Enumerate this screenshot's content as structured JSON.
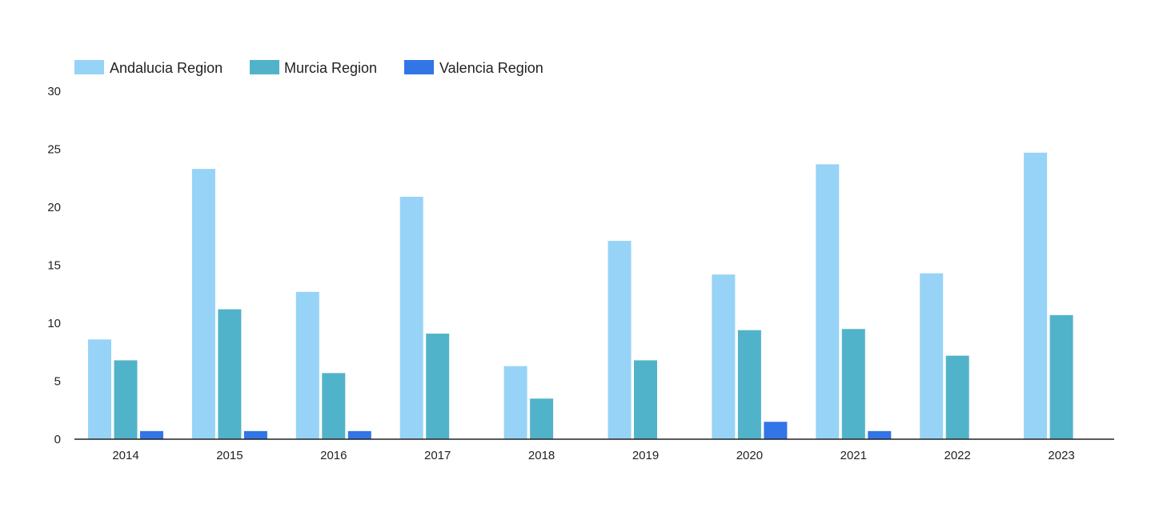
{
  "chart_data": {
    "type": "bar",
    "categories": [
      "2014",
      "2015",
      "2016",
      "2017",
      "2018",
      "2019",
      "2020",
      "2021",
      "2022",
      "2023"
    ],
    "series": [
      {
        "name": "Andalucia Region",
        "color": "#97d3f6",
        "values": [
          8.6,
          23.3,
          12.7,
          20.9,
          6.3,
          17.1,
          14.2,
          23.7,
          14.3,
          24.7
        ]
      },
      {
        "name": "Murcia Region",
        "color": "#51b3c9",
        "values": [
          6.8,
          11.2,
          5.7,
          9.1,
          3.5,
          6.8,
          9.4,
          9.5,
          7.2,
          10.7
        ]
      },
      {
        "name": "Valencia Region",
        "color": "#3275e6",
        "values": [
          0.7,
          0.7,
          0.7,
          0,
          0,
          0,
          1.5,
          0.7,
          0,
          0
        ]
      }
    ],
    "y_ticks": [
      "0",
      "5",
      "10",
      "15",
      "20",
      "25",
      "30"
    ],
    "ylim": [
      0,
      30
    ],
    "legend_position": "top-left",
    "grid": false
  }
}
